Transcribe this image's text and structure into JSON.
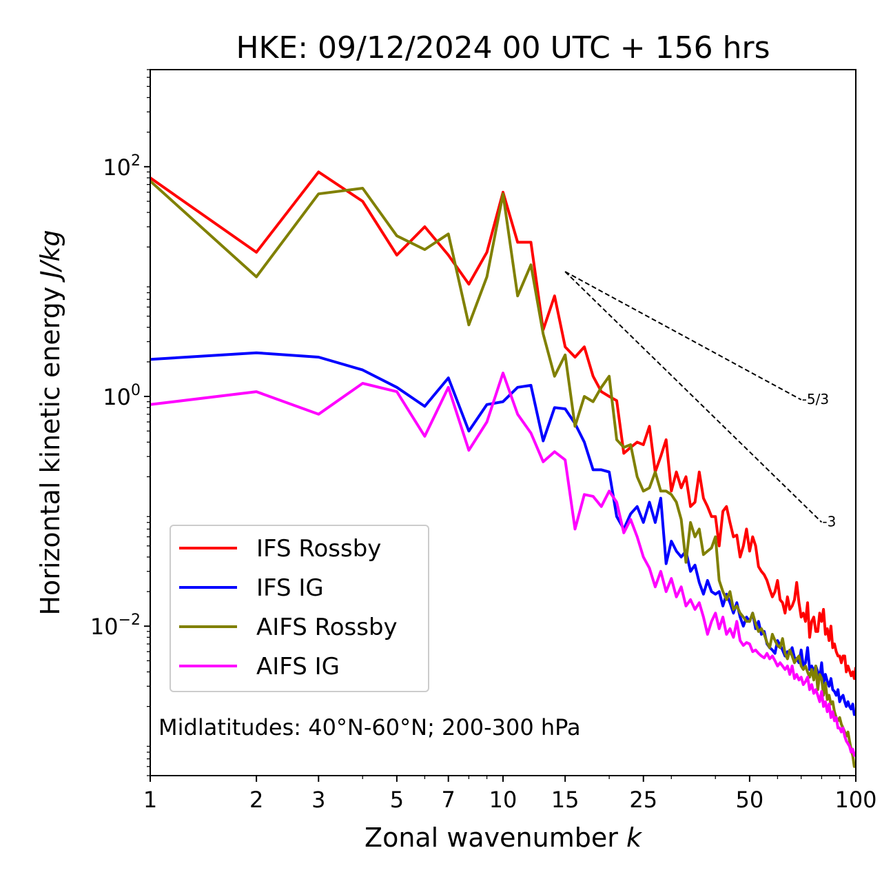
{
  "chart_data": {
    "type": "line",
    "title": "HKE: 09/12/2024 00 UTC + 156 hrs",
    "xlabel": "Zonal wavenumber",
    "xlabel_var": "k",
    "ylabel": "Horizontal kinetic energy",
    "ylabel_unit": "J/kg",
    "xscale": "log",
    "yscale": "log",
    "xlim": [
      1,
      100
    ],
    "ylim": [
      0.0005,
      700
    ],
    "x_ticks": [
      {
        "value": 1,
        "label": "1"
      },
      {
        "value": 2,
        "label": "2"
      },
      {
        "value": 3,
        "label": "3"
      },
      {
        "value": 5,
        "label": "5"
      },
      {
        "value": 7,
        "label": "7"
      },
      {
        "value": 10,
        "label": "10"
      },
      {
        "value": 15,
        "label": "15"
      },
      {
        "value": 25,
        "label": "25"
      },
      {
        "value": 50,
        "label": "50"
      },
      {
        "value": 100,
        "label": "100"
      }
    ],
    "y_ticks": [
      {
        "value": 100,
        "base": "10",
        "exp": "2"
      },
      {
        "value": 1,
        "base": "10",
        "exp": "0"
      },
      {
        "value": 0.01,
        "base": "10",
        "exp": "−2"
      }
    ],
    "grid": false,
    "legend_position": "lower-left",
    "annotation": "Midlatitudes: 40°N-60°N; 200-300 hPa",
    "reference_slopes": [
      {
        "label": "-5/3",
        "slope": -1.6667,
        "x_start": 15,
        "y_start": 12.2,
        "x_end": 70
      },
      {
        "label": "-3",
        "slope": -3,
        "x_start": 15,
        "y_start": 12.2,
        "x_end": 80
      }
    ],
    "series": [
      {
        "name": "IFS Rossby",
        "color": "#ff0000",
        "x": [
          1,
          2,
          3,
          4,
          5,
          6,
          7,
          8,
          9,
          10,
          11,
          12,
          13,
          14,
          15,
          16,
          17,
          18,
          19,
          20,
          21,
          22,
          23,
          24,
          25,
          26,
          27,
          28,
          29,
          30,
          31,
          32,
          33,
          34,
          35,
          36,
          37,
          38,
          39,
          40,
          41,
          42,
          43,
          44,
          45,
          46,
          47,
          48,
          49,
          50,
          51,
          52,
          53,
          54,
          55,
          56,
          57,
          58,
          59,
          60,
          61,
          62,
          63,
          64,
          65,
          66,
          67,
          68,
          69,
          70,
          71,
          72,
          73,
          74,
          75,
          76,
          77,
          78,
          79,
          80,
          81,
          82,
          83,
          84,
          85,
          86,
          87,
          88,
          89,
          90,
          91,
          92,
          93,
          94,
          95,
          96,
          97,
          98,
          99,
          100
        ],
        "y": [
          80,
          18,
          90,
          50,
          17,
          30,
          17,
          9.5,
          18,
          60,
          22,
          22,
          3.8,
          7.5,
          2.7,
          2.2,
          2.7,
          1.5,
          1.1,
          1.0,
          0.92,
          0.32,
          0.36,
          0.4,
          0.38,
          0.55,
          0.22,
          0.3,
          0.42,
          0.15,
          0.22,
          0.16,
          0.2,
          0.11,
          0.12,
          0.22,
          0.13,
          0.11,
          0.09,
          0.09,
          0.05,
          0.1,
          0.11,
          0.08,
          0.06,
          0.062,
          0.04,
          0.05,
          0.07,
          0.045,
          0.06,
          0.05,
          0.033,
          0.03,
          0.028,
          0.025,
          0.021,
          0.018,
          0.02,
          0.025,
          0.017,
          0.016,
          0.013,
          0.018,
          0.014,
          0.015,
          0.017,
          0.024,
          0.016,
          0.012,
          0.013,
          0.011,
          0.016,
          0.008,
          0.011,
          0.012,
          0.009,
          0.009,
          0.013,
          0.011,
          0.014,
          0.0085,
          0.0095,
          0.0075,
          0.01,
          0.0065,
          0.007,
          0.006,
          0.0055,
          0.0055,
          0.0048,
          0.0055,
          0.0055,
          0.004,
          0.0045,
          0.0041,
          0.0037,
          0.004,
          0.0035,
          0.0044
        ]
      },
      {
        "name": "IFS IG",
        "color": "#0000ff",
        "x": [
          1,
          2,
          3,
          4,
          5,
          6,
          7,
          8,
          9,
          10,
          11,
          12,
          13,
          14,
          15,
          16,
          17,
          18,
          19,
          20,
          21,
          22,
          23,
          24,
          25,
          26,
          27,
          28,
          29,
          30,
          31,
          32,
          33,
          34,
          35,
          36,
          37,
          38,
          39,
          40,
          41,
          42,
          43,
          44,
          45,
          46,
          47,
          48,
          49,
          50,
          51,
          52,
          53,
          54,
          55,
          56,
          57,
          58,
          59,
          60,
          61,
          62,
          63,
          64,
          65,
          66,
          67,
          68,
          69,
          70,
          71,
          72,
          73,
          74,
          75,
          76,
          77,
          78,
          79,
          80,
          81,
          82,
          83,
          84,
          85,
          86,
          87,
          88,
          89,
          90,
          91,
          92,
          93,
          94,
          95,
          96,
          97,
          98,
          99,
          100
        ],
        "y": [
          2.1,
          2.4,
          2.2,
          1.7,
          1.2,
          0.82,
          1.45,
          0.5,
          0.85,
          0.9,
          1.2,
          1.25,
          0.41,
          0.8,
          0.78,
          0.58,
          0.4,
          0.23,
          0.23,
          0.22,
          0.09,
          0.07,
          0.095,
          0.11,
          0.08,
          0.12,
          0.08,
          0.13,
          0.035,
          0.055,
          0.045,
          0.04,
          0.045,
          0.03,
          0.034,
          0.024,
          0.019,
          0.025,
          0.02,
          0.019,
          0.02,
          0.015,
          0.019,
          0.016,
          0.013,
          0.016,
          0.012,
          0.01,
          0.012,
          0.011,
          0.013,
          0.0095,
          0.011,
          0.0085,
          0.009,
          0.007,
          0.0065,
          0.0062,
          0.0058,
          0.0075,
          0.0068,
          0.0062,
          0.0055,
          0.006,
          0.0058,
          0.0065,
          0.0053,
          0.0052,
          0.0048,
          0.0062,
          0.0045,
          0.0048,
          0.0065,
          0.0042,
          0.0045,
          0.004,
          0.0045,
          0.004,
          0.0035,
          0.0048,
          0.0032,
          0.0038,
          0.0033,
          0.003,
          0.0035,
          0.0028,
          0.0027,
          0.0025,
          0.0028,
          0.0022,
          0.0024,
          0.0025,
          0.0022,
          0.002,
          0.0022,
          0.002,
          0.0019,
          0.0021,
          0.0017,
          0.0018
        ]
      },
      {
        "name": "AIFS Rossby",
        "color": "#808000",
        "x": [
          1,
          2,
          3,
          4,
          5,
          6,
          7,
          8,
          9,
          10,
          11,
          12,
          13,
          14,
          15,
          16,
          17,
          18,
          19,
          20,
          21,
          22,
          23,
          24,
          25,
          26,
          27,
          28,
          29,
          30,
          31,
          32,
          33,
          34,
          35,
          36,
          37,
          38,
          39,
          40,
          41,
          42,
          43,
          44,
          45,
          46,
          47,
          48,
          49,
          50,
          51,
          52,
          53,
          54,
          55,
          56,
          57,
          58,
          59,
          60,
          61,
          62,
          63,
          64,
          65,
          66,
          67,
          68,
          69,
          70,
          71,
          72,
          73,
          74,
          75,
          76,
          77,
          78,
          79,
          80,
          81,
          82,
          83,
          84,
          85,
          86,
          87,
          88,
          89,
          90,
          91,
          92,
          93,
          94,
          95,
          96,
          97,
          98,
          99,
          100
        ],
        "y": [
          75,
          11,
          58,
          65,
          25,
          19,
          26,
          4.2,
          11,
          58,
          7.5,
          14,
          3.5,
          1.5,
          2.3,
          0.55,
          1.0,
          0.9,
          1.2,
          1.5,
          0.42,
          0.36,
          0.38,
          0.2,
          0.15,
          0.16,
          0.22,
          0.15,
          0.15,
          0.14,
          0.12,
          0.085,
          0.036,
          0.08,
          0.06,
          0.07,
          0.042,
          0.045,
          0.048,
          0.06,
          0.025,
          0.02,
          0.017,
          0.02,
          0.014,
          0.015,
          0.013,
          0.012,
          0.011,
          0.011,
          0.013,
          0.0105,
          0.009,
          0.0095,
          0.0085,
          0.0072,
          0.0065,
          0.0085,
          0.0075,
          0.0068,
          0.0065,
          0.0078,
          0.0058,
          0.0052,
          0.0062,
          0.0055,
          0.0048,
          0.0052,
          0.0055,
          0.0045,
          0.0042,
          0.0045,
          0.004,
          0.0036,
          0.0042,
          0.0034,
          0.0045,
          0.0028,
          0.0038,
          0.0035,
          0.0025,
          0.0032,
          0.0023,
          0.0025,
          0.0021,
          0.0022,
          0.0018,
          0.0016,
          0.0015,
          0.0016,
          0.0014,
          0.0013,
          0.0012,
          0.0011,
          0.0012,
          0.001,
          0.00085,
          0.00075,
          0.0006,
          0.0006
        ]
      },
      {
        "name": "AIFS IG",
        "color": "#ff00ff",
        "x": [
          1,
          2,
          3,
          4,
          5,
          6,
          7,
          8,
          9,
          10,
          11,
          12,
          13,
          14,
          15,
          16,
          17,
          18,
          19,
          20,
          21,
          22,
          23,
          24,
          25,
          26,
          27,
          28,
          29,
          30,
          31,
          32,
          33,
          34,
          35,
          36,
          37,
          38,
          39,
          40,
          41,
          42,
          43,
          44,
          45,
          46,
          47,
          48,
          49,
          50,
          51,
          52,
          53,
          54,
          55,
          56,
          57,
          58,
          59,
          60,
          61,
          62,
          63,
          64,
          65,
          66,
          67,
          68,
          69,
          70,
          71,
          72,
          73,
          74,
          75,
          76,
          77,
          78,
          79,
          80,
          81,
          82,
          83,
          84,
          85,
          86,
          87,
          88,
          89,
          90,
          91,
          92,
          93,
          94,
          95,
          96,
          97,
          98,
          99,
          100
        ],
        "y": [
          0.85,
          1.1,
          0.7,
          1.3,
          1.1,
          0.45,
          1.2,
          0.34,
          0.6,
          1.6,
          0.7,
          0.48,
          0.27,
          0.33,
          0.28,
          0.07,
          0.14,
          0.135,
          0.11,
          0.15,
          0.12,
          0.065,
          0.085,
          0.06,
          0.04,
          0.032,
          0.022,
          0.03,
          0.02,
          0.026,
          0.018,
          0.022,
          0.015,
          0.017,
          0.014,
          0.016,
          0.012,
          0.0085,
          0.011,
          0.013,
          0.0095,
          0.012,
          0.0085,
          0.0095,
          0.008,
          0.011,
          0.0075,
          0.0068,
          0.0072,
          0.007,
          0.006,
          0.0062,
          0.0058,
          0.0055,
          0.0053,
          0.0058,
          0.0052,
          0.0055,
          0.005,
          0.0045,
          0.0048,
          0.0045,
          0.0042,
          0.0045,
          0.0038,
          0.0045,
          0.0035,
          0.0038,
          0.0034,
          0.0036,
          0.0031,
          0.0033,
          0.0036,
          0.0028,
          0.0031,
          0.0026,
          0.0028,
          0.0025,
          0.0022,
          0.0027,
          0.002,
          0.0022,
          0.0018,
          0.0021,
          0.0016,
          0.0018,
          0.0015,
          0.0016,
          0.0013,
          0.0013,
          0.0012,
          0.0013,
          0.0011,
          0.001,
          0.00095,
          0.0009,
          0.0008,
          0.00085,
          0.00075,
          0.0008
        ]
      }
    ]
  }
}
